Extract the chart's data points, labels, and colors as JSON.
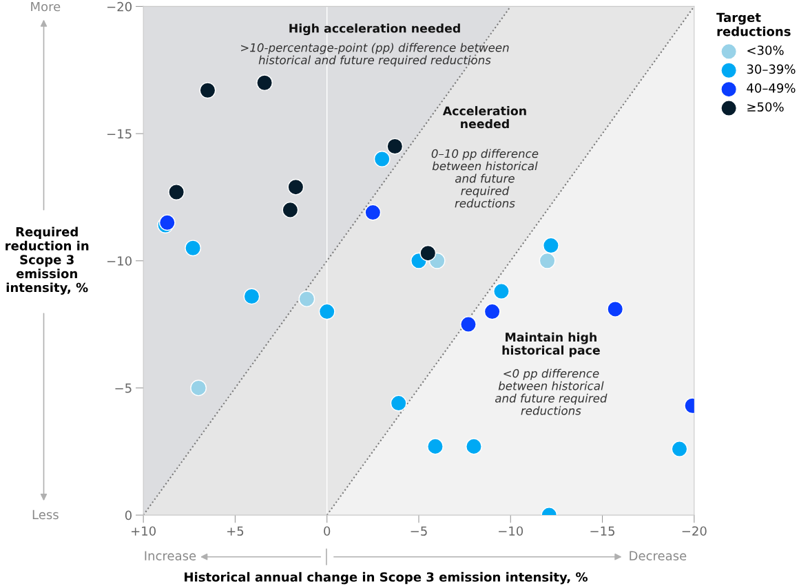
{
  "chart_data": {
    "type": "scatter",
    "xlabel": "Historical annual change in Scope 3 emission intensity, %",
    "ylabel": "Required reduction in Scope 3 emission intensity, %",
    "legend_title": "Target reductions",
    "xlim": [
      10,
      -20
    ],
    "ylim": [
      0,
      -20
    ],
    "xticks": [
      {
        "value": 10,
        "label": "+10"
      },
      {
        "value": 5,
        "label": "+5"
      },
      0,
      {
        "value": -5,
        "label": "−5"
      },
      {
        "value": -10,
        "label": "−10"
      },
      {
        "value": -15,
        "label": "−15"
      },
      {
        "value": -20,
        "label": "−20"
      }
    ],
    "yticks": [
      0,
      {
        "value": -5,
        "label": "−5"
      },
      {
        "value": -10,
        "label": "−10"
      },
      {
        "value": -15,
        "label": "−15"
      },
      {
        "value": -20,
        "label": "−20"
      }
    ],
    "grid": false,
    "legend": "top right",
    "marker": "circle",
    "ref_lines": [
      {
        "axis": "x",
        "value": 0,
        "color": "#ffffff"
      }
    ],
    "series": [
      {
        "type": "line",
        "color": "#7a7a7a",
        "line_style": "dotted",
        "marker": "none",
        "x": [
          10,
          -10
        ],
        "values": [
          0,
          -20
        ]
      },
      {
        "type": "line",
        "color": "#7a7a7a",
        "line_style": "dotted",
        "marker": "none",
        "x": [
          0,
          -20
        ],
        "values": [
          0,
          -20
        ]
      },
      {
        "name": "<30%",
        "color": "#98d2e8",
        "x": [
          -6.0,
          -12.0,
          1.1,
          7.0
        ],
        "values": [
          -10.0,
          -10.0,
          -8.5,
          -5.0
        ]
      },
      {
        "name": "30–39%",
        "color": "#00a9f4",
        "x": [
          8.8,
          7.3,
          -3.0,
          -5.0,
          -12.2,
          -9.5,
          4.1,
          0.0,
          -3.9,
          -5.9,
          -8.0,
          -19.2,
          -12.1
        ],
        "values": [
          -11.4,
          -10.5,
          -14.0,
          -10.0,
          -10.6,
          -8.8,
          -8.6,
          -8.0,
          -4.4,
          -2.7,
          -2.7,
          -2.6,
          0.0
        ]
      },
      {
        "name": "40–49%",
        "color": "#0a3cff",
        "x": [
          8.7,
          -2.5,
          -7.7,
          -9.0,
          -15.7,
          -19.9
        ],
        "values": [
          -11.5,
          -11.9,
          -7.5,
          -8.0,
          -8.1,
          -4.3
        ]
      },
      {
        "name": "≥50%",
        "color": "#051c2c",
        "x": [
          6.5,
          3.4,
          -3.7,
          8.2,
          1.7,
          2.0,
          -5.5
        ],
        "values": [
          -16.7,
          -17.0,
          -14.5,
          -12.7,
          -12.9,
          -12.0,
          -10.3
        ]
      }
    ],
    "annotations": [
      "High acceleration needed",
      ">10-percentage-point (pp) difference between\nhistorical and future required reductions",
      "Acceleration\nneeded",
      "0–10 pp difference\nbetween historical\nand future\nrequired\nreductions",
      "Maintain high\nhistorical pace",
      "<0 pp difference\nbetween historical\nand future required\nreductions",
      "More",
      "Less",
      "Increase",
      "Decrease"
    ]
  }
}
